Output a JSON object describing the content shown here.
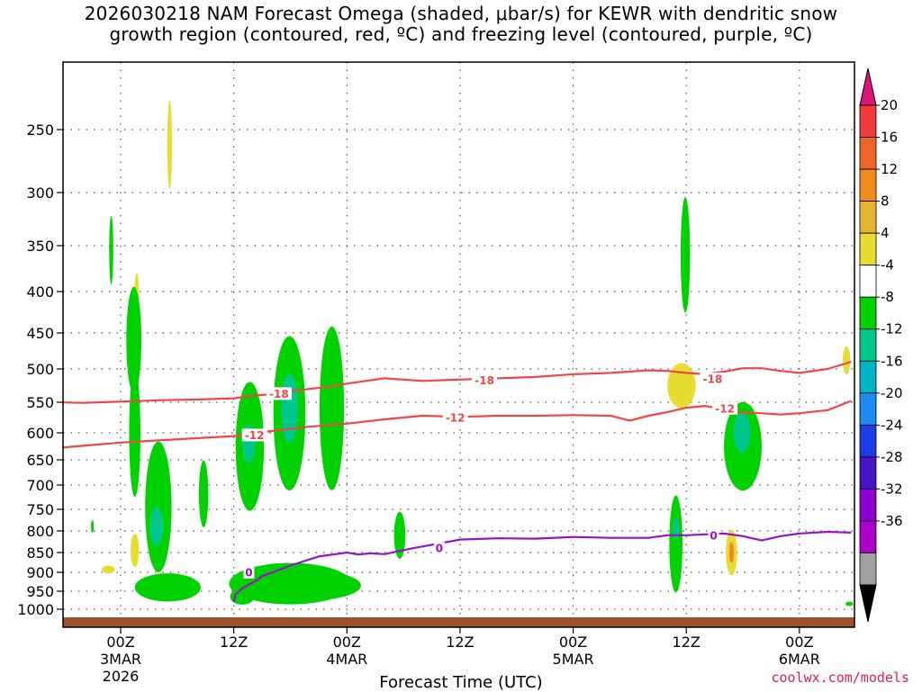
{
  "title": {
    "line1": "2026030218 NAM Forecast Omega (shaded, μbar/s) for KEWR with dendritic snow",
    "line2": "growth region (contoured, red, ºC) and freezing level (contoured, purple, ºC)"
  },
  "xlabel": "Forecast Time (UTC)",
  "credit": "coolwx.com/models",
  "chart_data": {
    "type": "heatmap",
    "title": "2026030218 NAM Forecast Omega (shaded, μbar/s) for KEWR with dendritic snow growth region (contoured, red, ºC) and freezing level (contoured, purple, ºC)",
    "xlabel": "Forecast Time (UTC)",
    "ylabel": "",
    "xlim_hours": [
      -6.8,
      77.5
    ],
    "y_pressure_levels": [
      250,
      300,
      350,
      400,
      450,
      500,
      550,
      600,
      650,
      700,
      750,
      800,
      850,
      900,
      950,
      1000
    ],
    "x_ticks": [
      {
        "h": 0,
        "l1": "00Z",
        "l2": "3MAR",
        "l3": "2026"
      },
      {
        "h": 12,
        "l1": "12Z",
        "l2": "",
        "l3": ""
      },
      {
        "h": 24,
        "l1": "00Z",
        "l2": "4MAR",
        "l3": ""
      },
      {
        "h": 36,
        "l1": "12Z",
        "l2": "",
        "l3": ""
      },
      {
        "h": 48,
        "l1": "00Z",
        "l2": "5MAR",
        "l3": ""
      },
      {
        "h": 60,
        "l1": "12Z",
        "l2": "",
        "l3": ""
      },
      {
        "h": 72,
        "l1": "00Z",
        "l2": "6MAR",
        "l3": ""
      }
    ],
    "grid": true,
    "colorbar": {
      "labels": [
        "20",
        "16",
        "12",
        "8",
        "4",
        "-4",
        "-8",
        "-12",
        "-16",
        "-20",
        "-24",
        "-28",
        "-32",
        "-36"
      ],
      "colors": [
        "#f03c3c",
        "#f06428",
        "#f08c1e",
        "#e6b432",
        "#e6dc32",
        "#ffffff",
        "#00d200",
        "#00c88c",
        "#00b4c8",
        "#1e8cf0",
        "#1e3ce6",
        "#4614c8",
        "#8c00d2",
        "#aa00c8",
        "#a0a0a0"
      ],
      "top_arrow_color": "#dc1478",
      "bottom_arrow_color": "#000000"
    },
    "contours": [
      {
        "name": "-18",
        "color": "#f04646",
        "points": [
          [
            -6.8,
            550
          ],
          [
            -4,
            551
          ],
          [
            0,
            549
          ],
          [
            4,
            547
          ],
          [
            8,
            546
          ],
          [
            12,
            544
          ],
          [
            14,
            540
          ],
          [
            16,
            538
          ],
          [
            18,
            534
          ],
          [
            20,
            530
          ],
          [
            22,
            527
          ],
          [
            24,
            522
          ],
          [
            26,
            518
          ],
          [
            28,
            514
          ],
          [
            32,
            518
          ],
          [
            36,
            516
          ],
          [
            40,
            514
          ],
          [
            44,
            512
          ],
          [
            48,
            508
          ],
          [
            52,
            506
          ],
          [
            56,
            502
          ],
          [
            58,
            503
          ],
          [
            60,
            506
          ],
          [
            62,
            508
          ],
          [
            64,
            504
          ],
          [
            66,
            499
          ],
          [
            68,
            499
          ],
          [
            70,
            503
          ],
          [
            72,
            506
          ],
          [
            75,
            500
          ],
          [
            77.5,
            490
          ]
        ],
        "labels": [
          {
            "x": 16.8,
            "p": 537
          },
          {
            "x": 38.6,
            "p": 517
          },
          {
            "x": 62.8,
            "p": 515
          }
        ]
      },
      {
        "name": "-12",
        "color": "#f04646",
        "points": [
          [
            -6.8,
            628
          ],
          [
            -4,
            624
          ],
          [
            0,
            618
          ],
          [
            4,
            614
          ],
          [
            8,
            610
          ],
          [
            12,
            606
          ],
          [
            16,
            597
          ],
          [
            20,
            590
          ],
          [
            24,
            585
          ],
          [
            28,
            578
          ],
          [
            32,
            572
          ],
          [
            36,
            574
          ],
          [
            40,
            572
          ],
          [
            44,
            572
          ],
          [
            48,
            571
          ],
          [
            52,
            572
          ],
          [
            54,
            580
          ],
          [
            56,
            572
          ],
          [
            58,
            566
          ],
          [
            60,
            559
          ],
          [
            62,
            556
          ],
          [
            64,
            562
          ],
          [
            66,
            567
          ],
          [
            68,
            568
          ],
          [
            70,
            570
          ],
          [
            72,
            568
          ],
          [
            75,
            563
          ],
          [
            77.5,
            548
          ]
        ],
        "labels": [
          {
            "x": 14.2,
            "p": 604
          },
          {
            "x": 35.5,
            "p": 575
          },
          {
            "x": 64.1,
            "p": 560
          }
        ]
      },
      {
        "name": "0",
        "color": "#9614c8",
        "points": [
          [
            12,
            980
          ],
          [
            12.2,
            958
          ],
          [
            13,
            941
          ],
          [
            14,
            927
          ],
          [
            14.6,
            919
          ],
          [
            14.9,
            911
          ],
          [
            15.8,
            903
          ],
          [
            18,
            883
          ],
          [
            21,
            860
          ],
          [
            24,
            850
          ],
          [
            25.2,
            855
          ],
          [
            26.5,
            852
          ],
          [
            28,
            854
          ],
          [
            31,
            840
          ],
          [
            33,
            832
          ],
          [
            36,
            820
          ],
          [
            40,
            817
          ],
          [
            44,
            818
          ],
          [
            48,
            814
          ],
          [
            52,
            816
          ],
          [
            56,
            816
          ],
          [
            58,
            810
          ],
          [
            60,
            810
          ],
          [
            62,
            808
          ],
          [
            64,
            806
          ],
          [
            66,
            812
          ],
          [
            68,
            822
          ],
          [
            70,
            812
          ],
          [
            72,
            806
          ],
          [
            75,
            802
          ],
          [
            77.5,
            804
          ]
        ],
        "labels": [
          {
            "x": 13.6,
            "p": 900
          },
          {
            "x": 33.8,
            "p": 840
          },
          {
            "x": 62.9,
            "p": 810
          }
        ]
      }
    ]
  }
}
